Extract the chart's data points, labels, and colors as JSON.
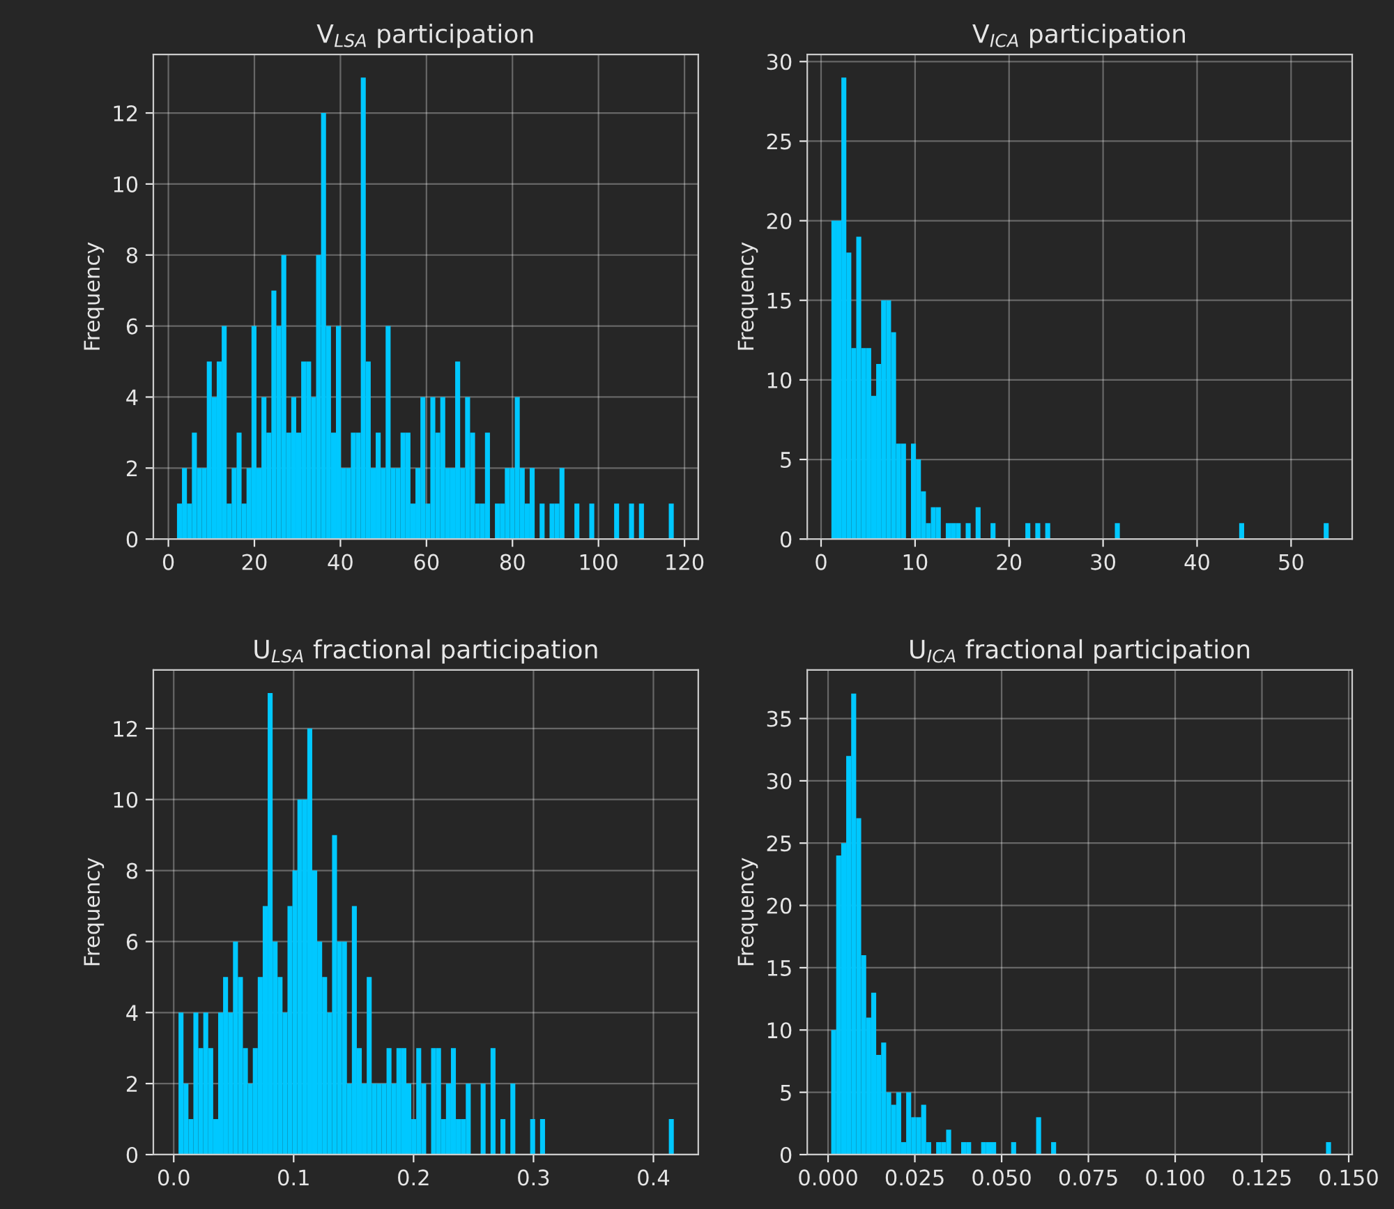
{
  "chart_data": [
    {
      "type": "histogram",
      "title": "V$_{LSA}$ participation",
      "ylabel": "Frequency",
      "color": "#00c8ff",
      "grid": true,
      "bins": [
        2,
        3.155,
        4.31,
        5.465,
        6.62,
        7.775,
        8.93,
        10.085,
        11.24,
        12.395,
        13.55,
        14.705,
        15.86,
        17.015,
        18.17,
        19.325,
        20.48,
        21.635,
        22.79,
        23.945,
        25.1,
        26.255,
        27.41,
        28.565,
        29.72,
        30.875,
        32.03,
        33.185,
        34.34,
        35.495,
        36.65,
        37.805,
        38.96,
        40.115,
        41.27,
        42.425,
        43.58,
        44.735,
        45.89,
        47.045,
        48.2,
        49.355,
        50.51,
        51.665,
        52.82,
        53.975,
        55.13,
        56.285,
        57.44,
        58.595,
        59.75,
        60.905,
        62.06,
        63.215,
        64.37,
        65.525,
        66.68,
        67.835,
        68.99,
        70.145,
        71.3,
        72.455,
        73.61,
        74.765,
        75.92,
        77.075,
        78.23,
        79.385,
        80.54,
        81.695,
        82.85,
        84.005,
        85.16,
        86.315,
        87.47,
        88.625,
        89.78,
        90.935,
        92.09,
        93.245,
        94.4,
        95.555,
        96.71,
        97.865,
        99.02,
        100.175,
        101.33,
        102.485,
        103.64,
        104.795,
        105.95,
        107.105,
        108.26,
        109.415,
        110.57,
        111.725,
        112.88,
        114.035,
        115.19,
        116.345,
        117.5
      ],
      "values": [
        1,
        2,
        1,
        3,
        2,
        2,
        5,
        4,
        5,
        6,
        1,
        2,
        3,
        1,
        2,
        6,
        2,
        4,
        3,
        7,
        6,
        8,
        3,
        4,
        3,
        5,
        5,
        4,
        8,
        12,
        6,
        3,
        6,
        2,
        2,
        3,
        3,
        13,
        5,
        2,
        3,
        2,
        6,
        2,
        2,
        3,
        3,
        1,
        2,
        4,
        1,
        4,
        3,
        4,
        2,
        2,
        5,
        2,
        4,
        3,
        1,
        1,
        3,
        0,
        1,
        1,
        2,
        2,
        4,
        2,
        1,
        2,
        0,
        1,
        0,
        1,
        1,
        2,
        0,
        0,
        1,
        0,
        0,
        1,
        0,
        0,
        0,
        0,
        1,
        0,
        0,
        1,
        0,
        1,
        0,
        0,
        0,
        0,
        0,
        1
      ],
      "xlim": [
        -3.5,
        123.2
      ],
      "ylim": [
        0,
        13.65
      ],
      "xticks": [
        0,
        20,
        40,
        60,
        80,
        100,
        120
      ],
      "yticks": [
        0,
        2,
        4,
        6,
        8,
        10,
        12
      ]
    },
    {
      "type": "histogram",
      "title": "V$_{ICA}$ participation",
      "ylabel": "Frequency",
      "color": "#00c8ff",
      "grid": true,
      "bins": [
        1.1,
        1.629,
        2.158,
        2.687,
        3.216,
        3.745,
        4.274,
        4.803,
        5.332,
        5.861,
        6.39,
        6.919,
        7.448,
        7.977,
        8.506,
        9.035,
        9.564,
        10.093,
        10.622,
        11.151,
        11.68,
        12.209,
        12.738,
        13.267,
        13.796,
        14.325,
        14.854,
        15.383,
        15.912,
        16.441,
        16.97,
        17.499,
        18.028,
        18.557,
        19.086,
        19.615,
        20.144,
        20.673,
        21.202,
        21.731,
        22.26,
        22.789,
        23.318,
        23.847,
        24.376,
        24.905,
        25.434,
        25.963,
        26.492,
        27.021,
        27.55,
        28.079,
        28.608,
        29.137,
        29.666,
        30.195,
        30.724,
        31.253,
        31.782,
        32.311,
        32.84,
        33.369,
        33.898,
        34.427,
        34.956,
        35.485,
        36.014,
        36.543,
        37.072,
        37.601,
        38.13,
        38.659,
        39.188,
        39.717,
        40.246,
        40.775,
        41.304,
        41.833,
        42.362,
        42.891,
        43.42,
        43.949,
        44.478,
        45.007,
        45.536,
        46.065,
        46.594,
        47.123,
        47.652,
        48.181,
        48.71,
        49.239,
        49.768,
        50.297,
        50.826,
        51.355,
        51.884,
        52.413,
        52.942,
        53.471,
        54.0
      ],
      "values": [
        20,
        20,
        29,
        18,
        12,
        19,
        12,
        12,
        9,
        11,
        15,
        15,
        13,
        6,
        6,
        0,
        6,
        5,
        3,
        1,
        2,
        2,
        0,
        1,
        1,
        1,
        0,
        1,
        0,
        2,
        0,
        0,
        1,
        0,
        0,
        0,
        0,
        0,
        0,
        1,
        0,
        1,
        0,
        1,
        0,
        0,
        0,
        0,
        0,
        0,
        0,
        0,
        0,
        0,
        0,
        0,
        0,
        1,
        0,
        0,
        0,
        0,
        0,
        0,
        0,
        0,
        0,
        0,
        0,
        0,
        0,
        0,
        0,
        0,
        0,
        0,
        0,
        0,
        0,
        0,
        0,
        0,
        1,
        0,
        0,
        0,
        0,
        0,
        0,
        0,
        0,
        0,
        0,
        0,
        0,
        0,
        0,
        0,
        0,
        1
      ],
      "xlim": [
        -1.47,
        56.5
      ],
      "ylim": [
        0,
        30.45
      ],
      "xticks": [
        0,
        10,
        20,
        30,
        40,
        50
      ],
      "yticks": [
        0,
        5,
        10,
        15,
        20,
        25,
        30
      ]
    },
    {
      "type": "histogram",
      "title": "U$_{LSA}$ fractional participation",
      "ylabel": "Frequency",
      "color": "#00c8ff",
      "grid": true,
      "bins": [
        0.004,
        0.00813,
        0.01226,
        0.01639,
        0.02052,
        0.02465,
        0.02878,
        0.03291,
        0.03704,
        0.04117,
        0.0453,
        0.04943,
        0.05356,
        0.05769,
        0.06182,
        0.06595,
        0.07008,
        0.07421,
        0.07834,
        0.08247,
        0.0866,
        0.09073,
        0.09486,
        0.09899,
        0.10312,
        0.10725,
        0.11138,
        0.11551,
        0.11964,
        0.12377,
        0.1279,
        0.13203,
        0.13616,
        0.14029,
        0.14442,
        0.14855,
        0.15268,
        0.15681,
        0.16094,
        0.16507,
        0.1692,
        0.17333,
        0.17746,
        0.18159,
        0.18572,
        0.18985,
        0.19398,
        0.19811,
        0.20224,
        0.20637,
        0.2105,
        0.21463,
        0.21876,
        0.22289,
        0.22702,
        0.23115,
        0.23528,
        0.23941,
        0.24354,
        0.24767,
        0.2518,
        0.25593,
        0.26006,
        0.26419,
        0.26832,
        0.27245,
        0.27658,
        0.28071,
        0.28484,
        0.28897,
        0.2931,
        0.29723,
        0.30136,
        0.30549,
        0.30962,
        0.31375,
        0.31788,
        0.32201,
        0.32614,
        0.33027,
        0.3344,
        0.33853,
        0.34266,
        0.34679,
        0.35092,
        0.35505,
        0.35918,
        0.36331,
        0.36744,
        0.37157,
        0.3757,
        0.37983,
        0.38396,
        0.38809,
        0.39222,
        0.39635,
        0.40048,
        0.40461,
        0.40874,
        0.41287,
        0.417
      ],
      "values": [
        4,
        2,
        1,
        4,
        3,
        4,
        3,
        1,
        4,
        5,
        4,
        6,
        5,
        3,
        2,
        3,
        5,
        7,
        13,
        6,
        5,
        4,
        7,
        8,
        10,
        10,
        12,
        8,
        6,
        5,
        4,
        9,
        6,
        6,
        2,
        7,
        3,
        2,
        5,
        2,
        2,
        2,
        3,
        2,
        3,
        3,
        2,
        1,
        3,
        2,
        0,
        3,
        3,
        1,
        2,
        3,
        1,
        1,
        2,
        0,
        0,
        2,
        0,
        3,
        0,
        1,
        0,
        2,
        0,
        0,
        0,
        1,
        0,
        1,
        0,
        0,
        0,
        0,
        0,
        0,
        0,
        0,
        0,
        0,
        0,
        0,
        0,
        0,
        0,
        0,
        0,
        0,
        0,
        0,
        0,
        0,
        0,
        0,
        0,
        1
      ],
      "xlim": [
        -0.017,
        0.4374
      ],
      "ylim": [
        0,
        13.65
      ],
      "xticks": [
        {
          "value": 0,
          "label": "0.0"
        },
        {
          "value": 0.1,
          "label": "0.1"
        },
        {
          "value": 0.2,
          "label": "0.2"
        },
        {
          "value": 0.3,
          "label": "0.3"
        },
        {
          "value": 0.4,
          "label": "0.4"
        }
      ],
      "yticks": [
        0,
        2,
        4,
        6,
        8,
        10,
        12
      ]
    },
    {
      "type": "histogram",
      "title": "U$_{ICA}$ fractional participation",
      "ylabel": "Frequency",
      "color": "#00c8ff",
      "grid": true,
      "bins": [
        0.0009,
        0.00234,
        0.00378,
        0.00522,
        0.00666,
        0.0081,
        0.00954,
        0.01098,
        0.01242,
        0.01386,
        0.0153,
        0.01674,
        0.01818,
        0.01962,
        0.02106,
        0.0225,
        0.02394,
        0.02538,
        0.02682,
        0.02826,
        0.0297,
        0.03114,
        0.03258,
        0.03402,
        0.03546,
        0.0369,
        0.03834,
        0.03978,
        0.04122,
        0.04266,
        0.0441,
        0.04554,
        0.04698,
        0.04842,
        0.04986,
        0.0513,
        0.05274,
        0.05418,
        0.05562,
        0.05706,
        0.0585,
        0.05994,
        0.06138,
        0.06282,
        0.06426,
        0.0657,
        0.06714,
        0.06858,
        0.07002,
        0.07146,
        0.0729,
        0.07434,
        0.07578,
        0.07722,
        0.07866,
        0.0801,
        0.08154,
        0.08298,
        0.08442,
        0.08586,
        0.0873,
        0.08874,
        0.09018,
        0.09162,
        0.09306,
        0.0945,
        0.09594,
        0.09738,
        0.09882,
        0.10026,
        0.1017,
        0.10314,
        0.10458,
        0.10602,
        0.10746,
        0.1089,
        0.11034,
        0.11178,
        0.11322,
        0.11466,
        0.1161,
        0.11754,
        0.11898,
        0.12042,
        0.12186,
        0.1233,
        0.12474,
        0.12618,
        0.12762,
        0.12906,
        0.1305,
        0.13194,
        0.13338,
        0.13482,
        0.13626,
        0.1377,
        0.13914,
        0.14058,
        0.14202,
        0.14346,
        0.1449
      ],
      "values": [
        10,
        24,
        25,
        32,
        37,
        27,
        16,
        11,
        13,
        8,
        9,
        5,
        4,
        5,
        1,
        5,
        3,
        3,
        4,
        1,
        0,
        1,
        1,
        2,
        0,
        0,
        1,
        1,
        0,
        0,
        1,
        1,
        1,
        0,
        0,
        0,
        1,
        0,
        0,
        0,
        0,
        3,
        0,
        0,
        1,
        0,
        0,
        0,
        0,
        0,
        0,
        0,
        0,
        0,
        0,
        0,
        0,
        0,
        0,
        0,
        0,
        0,
        0,
        0,
        0,
        0,
        0,
        0,
        0,
        0,
        0,
        0,
        0,
        0,
        0,
        0,
        0,
        0,
        0,
        0,
        0,
        0,
        0,
        0,
        0,
        0,
        0,
        0,
        0,
        0,
        0,
        0,
        0,
        0,
        0,
        0,
        0,
        0,
        0,
        1
      ],
      "xlim": [
        -0.006,
        0.151
      ],
      "ylim": [
        0,
        38.9
      ],
      "xticks": [
        {
          "value": 0,
          "label": "0.000"
        },
        {
          "value": 0.025,
          "label": "0.025"
        },
        {
          "value": 0.05,
          "label": "0.050"
        },
        {
          "value": 0.075,
          "label": "0.075"
        },
        {
          "value": 0.1,
          "label": "0.100"
        },
        {
          "value": 0.125,
          "label": "0.125"
        },
        {
          "value": 0.15,
          "label": "0.150"
        }
      ],
      "yticks": [
        0,
        5,
        10,
        15,
        20,
        25,
        30,
        35
      ]
    }
  ]
}
